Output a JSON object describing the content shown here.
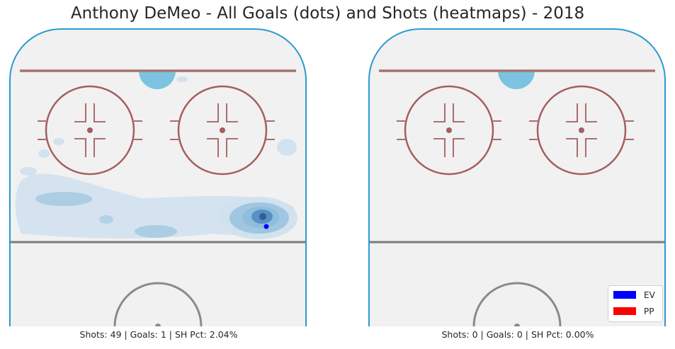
{
  "chart_data": {
    "type": "heatmap",
    "title": "Anthony DeMeo - All Goals (dots) and Shots (heatmaps) - 2018",
    "panels": [
      {
        "stats_text": "Shots: 49 | Goals: 1 | SH Pct: 2.04%",
        "shots": 49,
        "goals": 1,
        "sh_pct": "2.04%",
        "goal_points": [
          {
            "strength": "EV",
            "count": 1
          }
        ],
        "heatmap_level": "densest near the right faceoff dot area between the circles and the blue line"
      },
      {
        "stats_text": "Shots: 0 | Goals: 0 | SH Pct: 0.00%",
        "shots": 0,
        "goals": 0,
        "sh_pct": "0.00%",
        "goal_points": [],
        "heatmap_level": "none"
      }
    ],
    "legend": {
      "placement": "lower-right",
      "entries": [
        {
          "label": "EV",
          "color": "#0000ff"
        },
        {
          "label": "PP",
          "color": "#ff0000"
        }
      ]
    }
  },
  "colors": {
    "rink_fill": "#f1f1f1",
    "boards": "#2b9ad0",
    "goal_line": "#a87272",
    "faceoff": "#a55e5e",
    "crease": "#7bc3e0",
    "blue_line": "#7a7a7a",
    "center_circle": "#8a8a8a",
    "heat_light": "#cfe0ee",
    "heat_mid": "#8cbbdc",
    "heat_dark": "#4a85bf",
    "goal_dot": "#0000ff"
  }
}
